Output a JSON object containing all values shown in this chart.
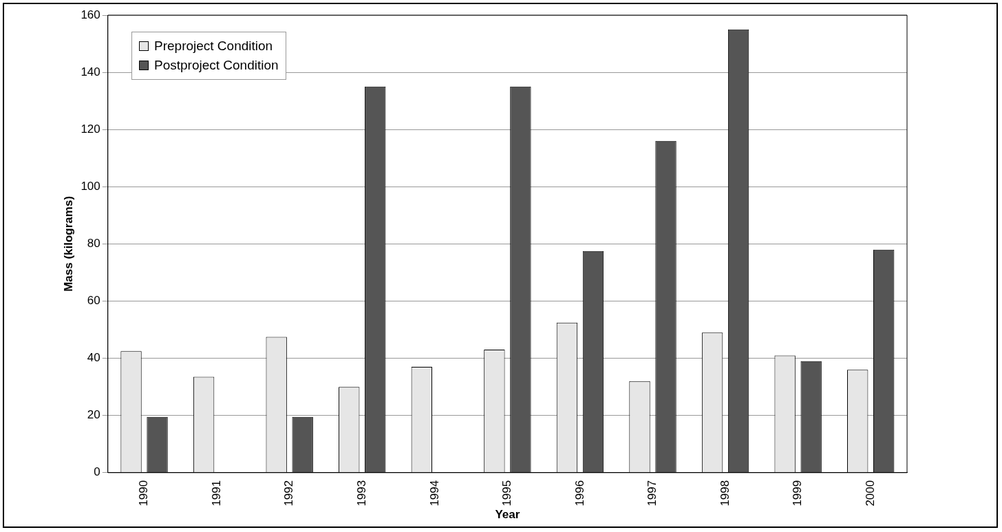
{
  "chart_data": {
    "type": "bar",
    "xlabel": "Year",
    "ylabel": "Mass (kilograms)",
    "categories": [
      "1990",
      "1991",
      "1992",
      "1993",
      "1994",
      "1995",
      "1996",
      "1997",
      "1998",
      "1999",
      "2000"
    ],
    "series": [
      {
        "name": "Preproject Condition",
        "color": "#e6e6e6",
        "values": [
          42.5,
          33.5,
          47.5,
          30,
          37,
          43,
          52.5,
          32,
          49,
          41,
          36
        ]
      },
      {
        "name": "Postproject Condition",
        "color": "#555555",
        "values": [
          19.5,
          null,
          19.5,
          135,
          null,
          135,
          77.5,
          116,
          155,
          39,
          78
        ]
      }
    ],
    "ylim": [
      0,
      160
    ],
    "yticks": [
      0,
      20,
      40,
      60,
      80,
      100,
      120,
      140,
      160
    ],
    "grid": "y",
    "legend": "top left"
  }
}
